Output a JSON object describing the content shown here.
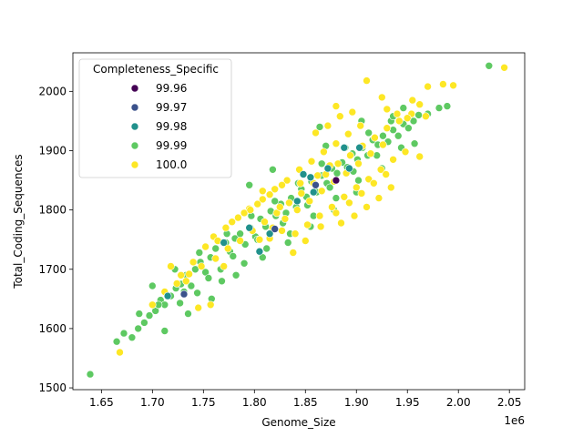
{
  "chart_data": {
    "type": "scatter",
    "xlabel": "Genome_Size",
    "ylabel": "Total_Coding_Sequences",
    "x_offset_label": "1e6",
    "xlim": [
      1.622,
      2.065
    ],
    "ylim": [
      1497,
      2065
    ],
    "x_unit_multiplier": 1000000,
    "x_ticks": [
      1.65,
      1.7,
      1.75,
      1.8,
      1.85,
      1.9,
      1.95,
      2.0,
      2.05
    ],
    "x_tick_labels": [
      "1.65",
      "1.70",
      "1.75",
      "1.80",
      "1.85",
      "1.90",
      "1.95",
      "2.00",
      "2.05"
    ],
    "y_ticks": [
      1500,
      1600,
      1700,
      1800,
      1900,
      2000
    ],
    "y_tick_labels": [
      "1500",
      "1600",
      "1700",
      "1800",
      "1900",
      "2000"
    ],
    "grid": false,
    "legend": {
      "title": "Completeness_Specific",
      "placement": "upper-left",
      "entries": [
        "99.96",
        "99.97",
        "99.98",
        "99.99",
        "100.0"
      ]
    },
    "series": [
      {
        "name": "99.99",
        "color": "#5ec962",
        "points": [
          [
            1.639,
            1523
          ],
          [
            2.03,
            2043
          ],
          [
            1.665,
            1578
          ],
          [
            1.672,
            1592
          ],
          [
            1.68,
            1585
          ],
          [
            1.686,
            1600
          ],
          [
            1.692,
            1610
          ],
          [
            1.697,
            1622
          ],
          [
            1.703,
            1630
          ],
          [
            1.708,
            1648
          ],
          [
            1.712,
            1640
          ],
          [
            1.718,
            1655
          ],
          [
            1.723,
            1668
          ],
          [
            1.728,
            1675
          ],
          [
            1.733,
            1690
          ],
          [
            1.738,
            1672
          ],
          [
            1.742,
            1700
          ],
          [
            1.747,
            1712
          ],
          [
            1.752,
            1695
          ],
          [
            1.757,
            1720
          ],
          [
            1.762,
            1735
          ],
          [
            1.767,
            1700
          ],
          [
            1.772,
            1745
          ],
          [
            1.776,
            1730
          ],
          [
            1.781,
            1752
          ],
          [
            1.786,
            1760
          ],
          [
            1.791,
            1742
          ],
          [
            1.796,
            1770
          ],
          [
            1.801,
            1755
          ],
          [
            1.806,
            1785
          ],
          [
            1.811,
            1772
          ],
          [
            1.816,
            1798
          ],
          [
            1.821,
            1790
          ],
          [
            1.826,
            1810
          ],
          [
            1.831,
            1795
          ],
          [
            1.836,
            1820
          ],
          [
            1.841,
            1805
          ],
          [
            1.846,
            1835
          ],
          [
            1.851,
            1822
          ],
          [
            1.856,
            1848
          ],
          [
            1.861,
            1830
          ],
          [
            1.866,
            1858
          ],
          [
            1.871,
            1845
          ],
          [
            1.876,
            1870
          ],
          [
            1.881,
            1862
          ],
          [
            1.886,
            1880
          ],
          [
            1.891,
            1872
          ],
          [
            1.896,
            1895
          ],
          [
            1.901,
            1885
          ],
          [
            1.906,
            1905
          ],
          [
            1.911,
            1892
          ],
          [
            1.916,
            1918
          ],
          [
            1.921,
            1910
          ],
          [
            1.926,
            1925
          ],
          [
            1.931,
            1915
          ],
          [
            1.936,
            1935
          ],
          [
            1.941,
            1925
          ],
          [
            1.946,
            1945
          ],
          [
            1.951,
            1938
          ],
          [
            1.956,
            1950
          ],
          [
            1.961,
            1960
          ],
          [
            1.97,
            1962
          ],
          [
            1.981,
            1972
          ],
          [
            1.989,
            1975
          ],
          [
            1.946,
            1972
          ],
          [
            1.7,
            1672
          ],
          [
            1.727,
            1643
          ],
          [
            1.744,
            1660
          ],
          [
            1.768,
            1680
          ],
          [
            1.79,
            1710
          ],
          [
            1.812,
            1735
          ],
          [
            1.835,
            1760
          ],
          [
            1.858,
            1790
          ],
          [
            1.88,
            1820
          ],
          [
            1.902,
            1850
          ],
          [
            1.712,
            1596
          ],
          [
            1.735,
            1625
          ],
          [
            1.758,
            1650
          ],
          [
            1.782,
            1690
          ],
          [
            1.808,
            1720
          ],
          [
            1.833,
            1745
          ],
          [
            1.855,
            1772
          ],
          [
            1.878,
            1800
          ],
          [
            1.9,
            1830
          ],
          [
            1.925,
            1870
          ],
          [
            1.722,
            1700
          ],
          [
            1.746,
            1728
          ],
          [
            1.773,
            1760
          ],
          [
            1.797,
            1790
          ],
          [
            1.82,
            1815
          ],
          [
            1.843,
            1845
          ],
          [
            1.866,
            1878
          ],
          [
            1.889,
            1905
          ],
          [
            1.912,
            1930
          ],
          [
            1.934,
            1950
          ],
          [
            1.687,
            1625
          ],
          [
            1.706,
            1640
          ],
          [
            1.731,
            1662
          ],
          [
            1.755,
            1685
          ],
          [
            1.779,
            1722
          ],
          [
            1.803,
            1750
          ],
          [
            1.828,
            1778
          ],
          [
            1.852,
            1808
          ],
          [
            1.874,
            1838
          ],
          [
            1.897,
            1865
          ],
          [
            1.87,
            1908
          ],
          [
            1.892,
            1928
          ],
          [
            1.864,
            1940
          ],
          [
            1.818,
            1868
          ],
          [
            1.795,
            1842
          ],
          [
            1.92,
            1892
          ],
          [
            1.944,
            1905
          ],
          [
            1.957,
            1912
          ],
          [
            1.936,
            1958
          ],
          [
            1.905,
            1950
          ]
        ]
      },
      {
        "name": "100.0",
        "color": "#fde725",
        "points": [
          [
            2.045,
            2040
          ],
          [
            1.91,
            2018
          ],
          [
            1.985,
            2012
          ],
          [
            1.995,
            2010
          ],
          [
            1.97,
            2008
          ],
          [
            1.925,
            1990
          ],
          [
            1.955,
            1985
          ],
          [
            1.962,
            1978
          ],
          [
            1.668,
            1560
          ],
          [
            1.745,
            1635
          ],
          [
            1.757,
            1640
          ],
          [
            1.733,
            1680
          ],
          [
            1.748,
            1705
          ],
          [
            1.762,
            1718
          ],
          [
            1.774,
            1735
          ],
          [
            1.786,
            1748
          ],
          [
            1.798,
            1765
          ],
          [
            1.81,
            1780
          ],
          [
            1.822,
            1795
          ],
          [
            1.834,
            1812
          ],
          [
            1.846,
            1828
          ],
          [
            1.858,
            1845
          ],
          [
            1.87,
            1860
          ],
          [
            1.882,
            1878
          ],
          [
            1.894,
            1892
          ],
          [
            1.906,
            1908
          ],
          [
            1.918,
            1922
          ],
          [
            1.93,
            1938
          ],
          [
            1.942,
            1950
          ],
          [
            1.954,
            1962
          ],
          [
            1.795,
            1802
          ],
          [
            1.808,
            1818
          ],
          [
            1.82,
            1835
          ],
          [
            1.832,
            1850
          ],
          [
            1.844,
            1868
          ],
          [
            1.856,
            1882
          ],
          [
            1.868,
            1898
          ],
          [
            1.88,
            1912
          ],
          [
            1.892,
            1928
          ],
          [
            1.904,
            1942
          ],
          [
            1.818,
            1770
          ],
          [
            1.83,
            1785
          ],
          [
            1.842,
            1800
          ],
          [
            1.854,
            1815
          ],
          [
            1.866,
            1832
          ],
          [
            1.878,
            1848
          ],
          [
            1.89,
            1862
          ],
          [
            1.902,
            1878
          ],
          [
            1.914,
            1895
          ],
          [
            1.926,
            1910
          ],
          [
            1.84,
            1760
          ],
          [
            1.852,
            1775
          ],
          [
            1.864,
            1790
          ],
          [
            1.876,
            1805
          ],
          [
            1.888,
            1822
          ],
          [
            1.9,
            1838
          ],
          [
            1.912,
            1852
          ],
          [
            1.924,
            1868
          ],
          [
            1.936,
            1885
          ],
          [
            1.948,
            1898
          ],
          [
            1.88,
            1795
          ],
          [
            1.893,
            1812
          ],
          [
            1.905,
            1828
          ],
          [
            1.917,
            1845
          ],
          [
            1.929,
            1860
          ],
          [
            1.778,
            1780
          ],
          [
            1.79,
            1795
          ],
          [
            1.803,
            1810
          ],
          [
            1.815,
            1826
          ],
          [
            1.827,
            1842
          ],
          [
            1.76,
            1755
          ],
          [
            1.772,
            1770
          ],
          [
            1.784,
            1787
          ],
          [
            1.796,
            1800
          ],
          [
            1.808,
            1832
          ],
          [
            1.718,
            1705
          ],
          [
            1.728,
            1690
          ],
          [
            1.74,
            1712
          ],
          [
            1.752,
            1738
          ],
          [
            1.764,
            1748
          ],
          [
            1.86,
            1930
          ],
          [
            1.872,
            1942
          ],
          [
            1.884,
            1958
          ],
          [
            1.896,
            1965
          ],
          [
            1.88,
            1975
          ],
          [
            1.93,
            1970
          ],
          [
            1.94,
            1962
          ],
          [
            1.95,
            1955
          ],
          [
            1.962,
            1890
          ],
          [
            1.968,
            1958
          ],
          [
            1.815,
            1752
          ],
          [
            1.827,
            1765
          ],
          [
            1.838,
            1728
          ],
          [
            1.85,
            1748
          ],
          [
            1.865,
            1772
          ],
          [
            1.885,
            1778
          ],
          [
            1.898,
            1790
          ],
          [
            1.91,
            1805
          ],
          [
            1.922,
            1820
          ],
          [
            1.934,
            1838
          ],
          [
            1.7,
            1640
          ],
          [
            1.712,
            1662
          ],
          [
            1.724,
            1676
          ],
          [
            1.736,
            1692
          ],
          [
            1.77,
            1705
          ],
          [
            1.805,
            1750
          ],
          [
            1.825,
            1805
          ],
          [
            1.845,
            1845
          ],
          [
            1.862,
            1858
          ],
          [
            1.874,
            1875
          ]
        ]
      },
      {
        "name": "99.98",
        "color": "#21918c",
        "points": [
          [
            1.715,
            1655
          ],
          [
            1.77,
            1745
          ],
          [
            1.795,
            1770
          ],
          [
            1.805,
            1730
          ],
          [
            1.815,
            1760
          ],
          [
            1.842,
            1815
          ],
          [
            1.858,
            1830
          ],
          [
            1.872,
            1870
          ],
          [
            1.888,
            1905
          ],
          [
            1.903,
            1905
          ],
          [
            1.848,
            1860
          ],
          [
            1.893,
            1870
          ],
          [
            1.855,
            1855
          ]
        ]
      },
      {
        "name": "99.97",
        "color": "#3b528b",
        "points": [
          [
            1.731,
            1658
          ],
          [
            1.82,
            1768
          ],
          [
            1.86,
            1842
          ]
        ]
      },
      {
        "name": "99.96",
        "color": "#440154",
        "points": [
          [
            1.88,
            1850
          ]
        ]
      }
    ]
  }
}
